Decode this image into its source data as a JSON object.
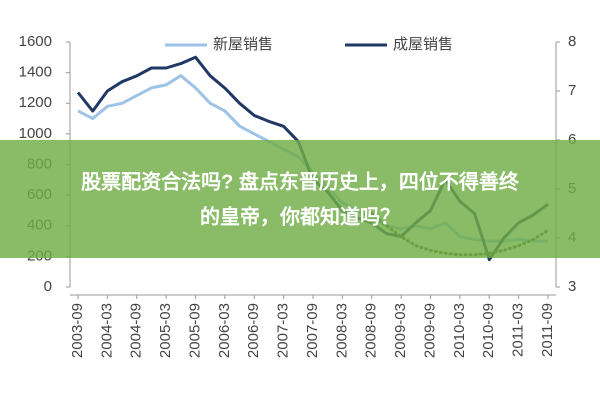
{
  "chart_data": {
    "type": "line",
    "legend_position": "top",
    "categories": [
      "2003-09",
      null,
      "2004-03",
      null,
      "2004-09",
      null,
      "2005-03",
      null,
      "2005-09",
      null,
      "2006-03",
      null,
      "2006-09",
      null,
      "2007-03",
      null,
      "2007-09",
      null,
      "2008-03",
      null,
      "2008-09",
      null,
      "2009-03",
      null,
      "2009-09",
      null,
      "2010-03",
      null,
      "2010-09",
      null,
      "2011-03",
      null,
      "2011-09"
    ],
    "ylim": [
      0,
      1600
    ],
    "yticks": [
      0,
      200,
      400,
      600,
      800,
      1000,
      1200,
      1400,
      1600
    ],
    "y2lim": [
      3,
      8
    ],
    "y2ticks": [
      3,
      4,
      5,
      6,
      7,
      8
    ],
    "grid": false,
    "series": [
      {
        "name": "新屋销售",
        "color": "#9dc3e6",
        "values": [
          1150,
          1100,
          1180,
          1200,
          1250,
          1300,
          1320,
          1380,
          1300,
          1200,
          1150,
          1050,
          1000,
          950,
          900,
          850,
          750,
          650,
          550,
          500,
          450,
          400,
          380,
          400,
          380,
          420,
          330,
          310,
          300,
          300,
          310,
          300,
          300
        ]
      },
      {
        "name": "成屋销售",
        "color": "#1f3864",
        "axis": "y2",
        "values": [
          6.97,
          6.59,
          7.0,
          7.19,
          7.31,
          7.47,
          7.47,
          7.56,
          7.69,
          7.31,
          7.06,
          6.75,
          6.5,
          6.38,
          6.28,
          5.97,
          5.19,
          4.94,
          4.56,
          4.41,
          4.31,
          4.09,
          4.03,
          4.31,
          4.56,
          5.19,
          4.75,
          4.5,
          3.56,
          4.0,
          4.31,
          4.47,
          4.69
        ]
      },
      {
        "color": "#4f6228",
        "dotted": true,
        "values": [
          null,
          null,
          null,
          null,
          null,
          null,
          null,
          null,
          null,
          null,
          null,
          null,
          null,
          null,
          null,
          null,
          null,
          null,
          null,
          null,
          480,
          400,
          330,
          270,
          240,
          220,
          210,
          210,
          220,
          240,
          270,
          310,
          370
        ]
      }
    ]
  },
  "overlay": {
    "lines": [
      "股票配资合法吗? 盘点东晋历史上，四位不得善终",
      "的皇帝，你都知道吗？"
    ]
  }
}
